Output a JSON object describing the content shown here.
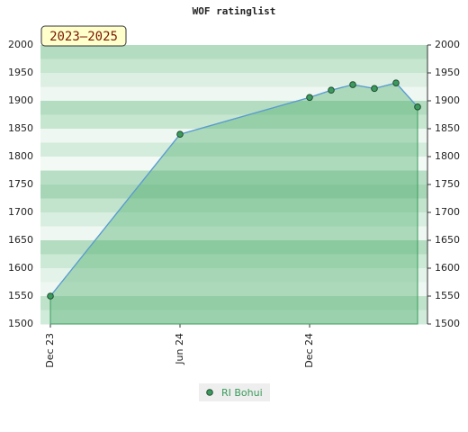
{
  "chart_data": {
    "type": "line",
    "title": "WOF ratinglist",
    "period_label": "2023–2025",
    "x": [
      "2023-12",
      "2024-06",
      "2024-12",
      "2025-01",
      "2025-02",
      "2025-03",
      "2025-04",
      "2025-05"
    ],
    "xlim": [
      "2023-12",
      "2025-05"
    ],
    "xticks": [
      {
        "value": "2023-12",
        "label": "Dec 23"
      },
      {
        "value": "2024-06",
        "label": "Jun 24"
      },
      {
        "value": "2024-12",
        "label": "Dec 24"
      }
    ],
    "series": [
      {
        "name": "RI Bohui",
        "color": "#3d9a5e",
        "values": [
          1550,
          1840,
          1906,
          1919,
          1929,
          1922,
          1932,
          1889
        ]
      }
    ],
    "ylim": [
      1500,
      2000
    ],
    "yticks": [
      1500,
      1550,
      1600,
      1650,
      1700,
      1750,
      1800,
      1850,
      1900,
      1950,
      2000
    ]
  }
}
